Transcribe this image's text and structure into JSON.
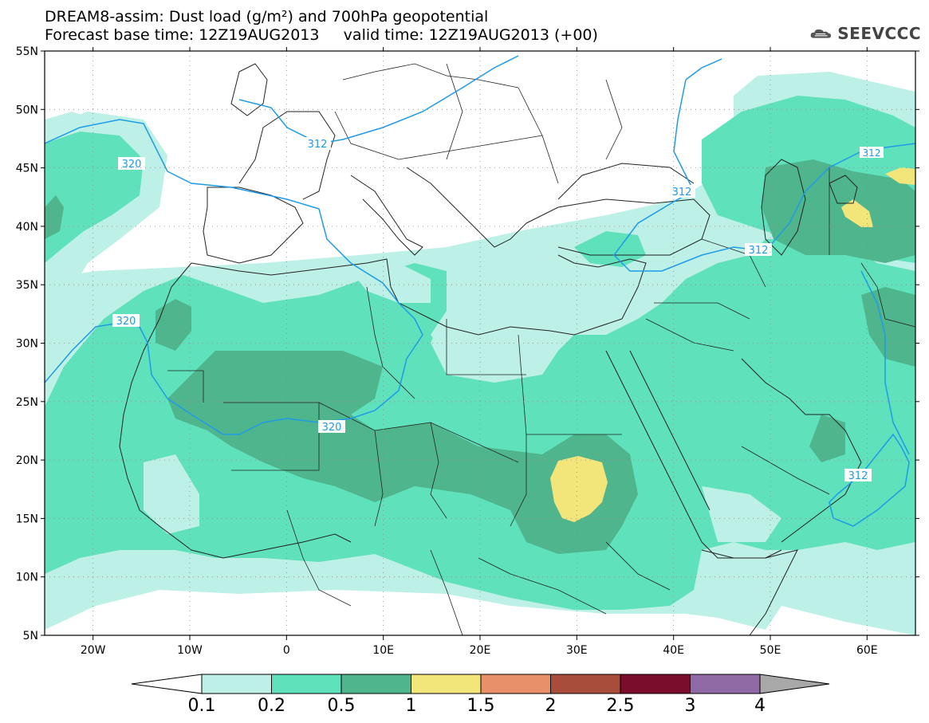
{
  "title": {
    "line1": "DREAM8-assim: Dust load (g/m²) and 700hPa geopotential",
    "line2": "Forecast base time: 12Z19AUG2013     valid time: 12Z19AUG2013 (+00)"
  },
  "logo": {
    "text": "SEEVCCC",
    "icon": "cloud-icon"
  },
  "map": {
    "lon_range": [
      -25,
      65
    ],
    "lat_range": [
      5,
      55
    ],
    "lat_ticks": [
      "55N",
      "50N",
      "45N",
      "40N",
      "35N",
      "30N",
      "25N",
      "20N",
      "15N",
      "10N",
      "5N"
    ],
    "lon_ticks": [
      "20W",
      "10W",
      "0",
      "10E",
      "20E",
      "30E",
      "40E",
      "50E",
      "60E"
    ],
    "contour_labels": [
      "320",
      "320",
      "320",
      "312",
      "312",
      "312",
      "312",
      "312"
    ]
  },
  "colorbar": {
    "labels": [
      "0.1",
      "0.2",
      "0.5",
      "1",
      "1.5",
      "2",
      "2.5",
      "3",
      "4"
    ],
    "colors": [
      "#bdf0e6",
      "#5fe1bc",
      "#4fb58c",
      "#f2e57a",
      "#e8906a",
      "#a84c3c",
      "#7a0c2c",
      "#8e6aa4",
      "#a8a8a8"
    ]
  },
  "colors": {
    "light": "#bdf0e6",
    "medium": "#5fe1bc",
    "dark": "#4fb58c",
    "yellow": "#f2e57a",
    "contour": "#1e9be8",
    "border": "#222222"
  }
}
